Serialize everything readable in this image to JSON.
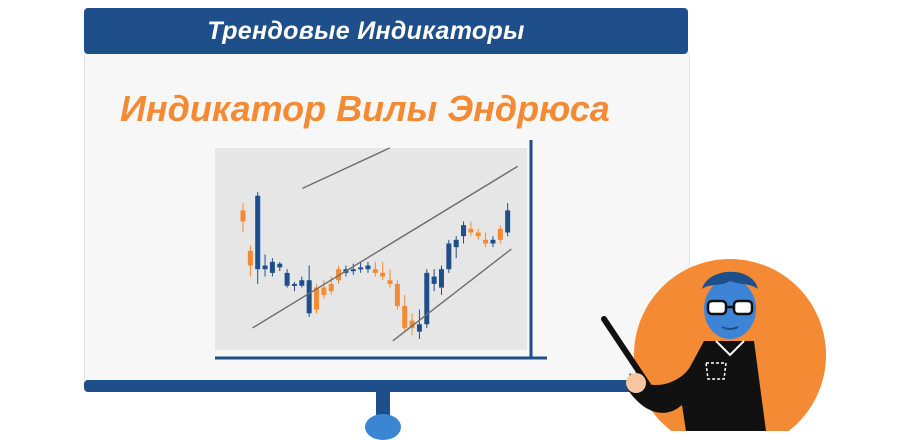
{
  "header": {
    "title": "Трендовые Индикаторы"
  },
  "board": {
    "subtitle": "Индикатор Вилы Эндрюса"
  },
  "colors": {
    "brand_blue": "#1f4f8a",
    "accent_orange": "#f48a33",
    "bull_candle": "#1f4f8a",
    "bear_candle": "#f48a33",
    "pitchfork_line": "#6e6e6e",
    "plot_background": "#e6e6e6"
  },
  "chart_data": {
    "type": "candlestick",
    "candles": [
      {
        "o": 0.7,
        "h": 0.8,
        "l": 0.64,
        "c": 0.76,
        "dir": "bear"
      },
      {
        "o": 0.54,
        "h": 0.57,
        "l": 0.4,
        "c": 0.46,
        "dir": "bear"
      },
      {
        "o": 0.44,
        "h": 0.86,
        "l": 0.36,
        "c": 0.84,
        "dir": "bull"
      },
      {
        "o": 0.44,
        "h": 0.52,
        "l": 0.4,
        "c": 0.46,
        "dir": "bull"
      },
      {
        "o": 0.48,
        "h": 0.5,
        "l": 0.4,
        "c": 0.42,
        "dir": "bull"
      },
      {
        "o": 0.47,
        "h": 0.48,
        "l": 0.43,
        "c": 0.45,
        "dir": "bull"
      },
      {
        "o": 0.35,
        "h": 0.44,
        "l": 0.34,
        "c": 0.42,
        "dir": "bull"
      },
      {
        "o": 0.35,
        "h": 0.37,
        "l": 0.32,
        "c": 0.36,
        "dir": "bull"
      },
      {
        "o": 0.38,
        "h": 0.4,
        "l": 0.34,
        "c": 0.35,
        "dir": "bull"
      },
      {
        "o": 0.38,
        "h": 0.46,
        "l": 0.18,
        "c": 0.2,
        "dir": "bull"
      },
      {
        "o": 0.22,
        "h": 0.36,
        "l": 0.2,
        "c": 0.34,
        "dir": "bear"
      },
      {
        "o": 0.34,
        "h": 0.38,
        "l": 0.28,
        "c": 0.3,
        "dir": "bear"
      },
      {
        "o": 0.32,
        "h": 0.4,
        "l": 0.3,
        "c": 0.36,
        "dir": "bear"
      },
      {
        "o": 0.38,
        "h": 0.46,
        "l": 0.36,
        "c": 0.44,
        "dir": "bear"
      },
      {
        "o": 0.44,
        "h": 0.46,
        "l": 0.4,
        "c": 0.42,
        "dir": "bull"
      },
      {
        "o": 0.43,
        "h": 0.47,
        "l": 0.41,
        "c": 0.44,
        "dir": "bull"
      },
      {
        "o": 0.44,
        "h": 0.48,
        "l": 0.42,
        "c": 0.45,
        "dir": "bull"
      },
      {
        "o": 0.46,
        "h": 0.48,
        "l": 0.42,
        "c": 0.44,
        "dir": "bull"
      },
      {
        "o": 0.44,
        "h": 0.48,
        "l": 0.4,
        "c": 0.42,
        "dir": "bear"
      },
      {
        "o": 0.42,
        "h": 0.48,
        "l": 0.38,
        "c": 0.4,
        "dir": "bear"
      },
      {
        "o": 0.38,
        "h": 0.44,
        "l": 0.34,
        "c": 0.36,
        "dir": "bear"
      },
      {
        "o": 0.36,
        "h": 0.38,
        "l": 0.22,
        "c": 0.24,
        "dir": "bear"
      },
      {
        "o": 0.24,
        "h": 0.3,
        "l": 0.1,
        "c": 0.12,
        "dir": "bear"
      },
      {
        "o": 0.12,
        "h": 0.2,
        "l": 0.08,
        "c": 0.16,
        "dir": "bear"
      },
      {
        "o": 0.14,
        "h": 0.22,
        "l": 0.06,
        "c": 0.1,
        "dir": "bull"
      },
      {
        "o": 0.14,
        "h": 0.44,
        "l": 0.12,
        "c": 0.42,
        "dir": "bull"
      },
      {
        "o": 0.4,
        "h": 0.44,
        "l": 0.32,
        "c": 0.36,
        "dir": "bull"
      },
      {
        "o": 0.34,
        "h": 0.46,
        "l": 0.3,
        "c": 0.44,
        "dir": "bull"
      },
      {
        "o": 0.44,
        "h": 0.6,
        "l": 0.42,
        "c": 0.58,
        "dir": "bull"
      },
      {
        "o": 0.56,
        "h": 0.62,
        "l": 0.5,
        "c": 0.6,
        "dir": "bull"
      },
      {
        "o": 0.62,
        "h": 0.7,
        "l": 0.58,
        "c": 0.68,
        "dir": "bull"
      },
      {
        "o": 0.66,
        "h": 0.7,
        "l": 0.62,
        "c": 0.64,
        "dir": "bear"
      },
      {
        "o": 0.64,
        "h": 0.66,
        "l": 0.6,
        "c": 0.62,
        "dir": "bear"
      },
      {
        "o": 0.6,
        "h": 0.64,
        "l": 0.56,
        "c": 0.58,
        "dir": "bear"
      },
      {
        "o": 0.58,
        "h": 0.62,
        "l": 0.56,
        "c": 0.6,
        "dir": "bull"
      },
      {
        "o": 0.6,
        "h": 0.68,
        "l": 0.58,
        "c": 0.66,
        "dir": "bear"
      },
      {
        "o": 0.64,
        "h": 0.8,
        "l": 0.62,
        "c": 0.76,
        "dir": "bull"
      }
    ],
    "pitchfork": {
      "upper": [
        [
          0.28,
          0.88
        ],
        [
          0.56,
          1.1
        ]
      ],
      "median": [
        [
          0.12,
          0.12
        ],
        [
          0.97,
          1.0
        ]
      ],
      "lower": [
        [
          0.57,
          0.05
        ],
        [
          0.95,
          0.55
        ]
      ]
    },
    "ylim": [
      0,
      1.1
    ]
  }
}
